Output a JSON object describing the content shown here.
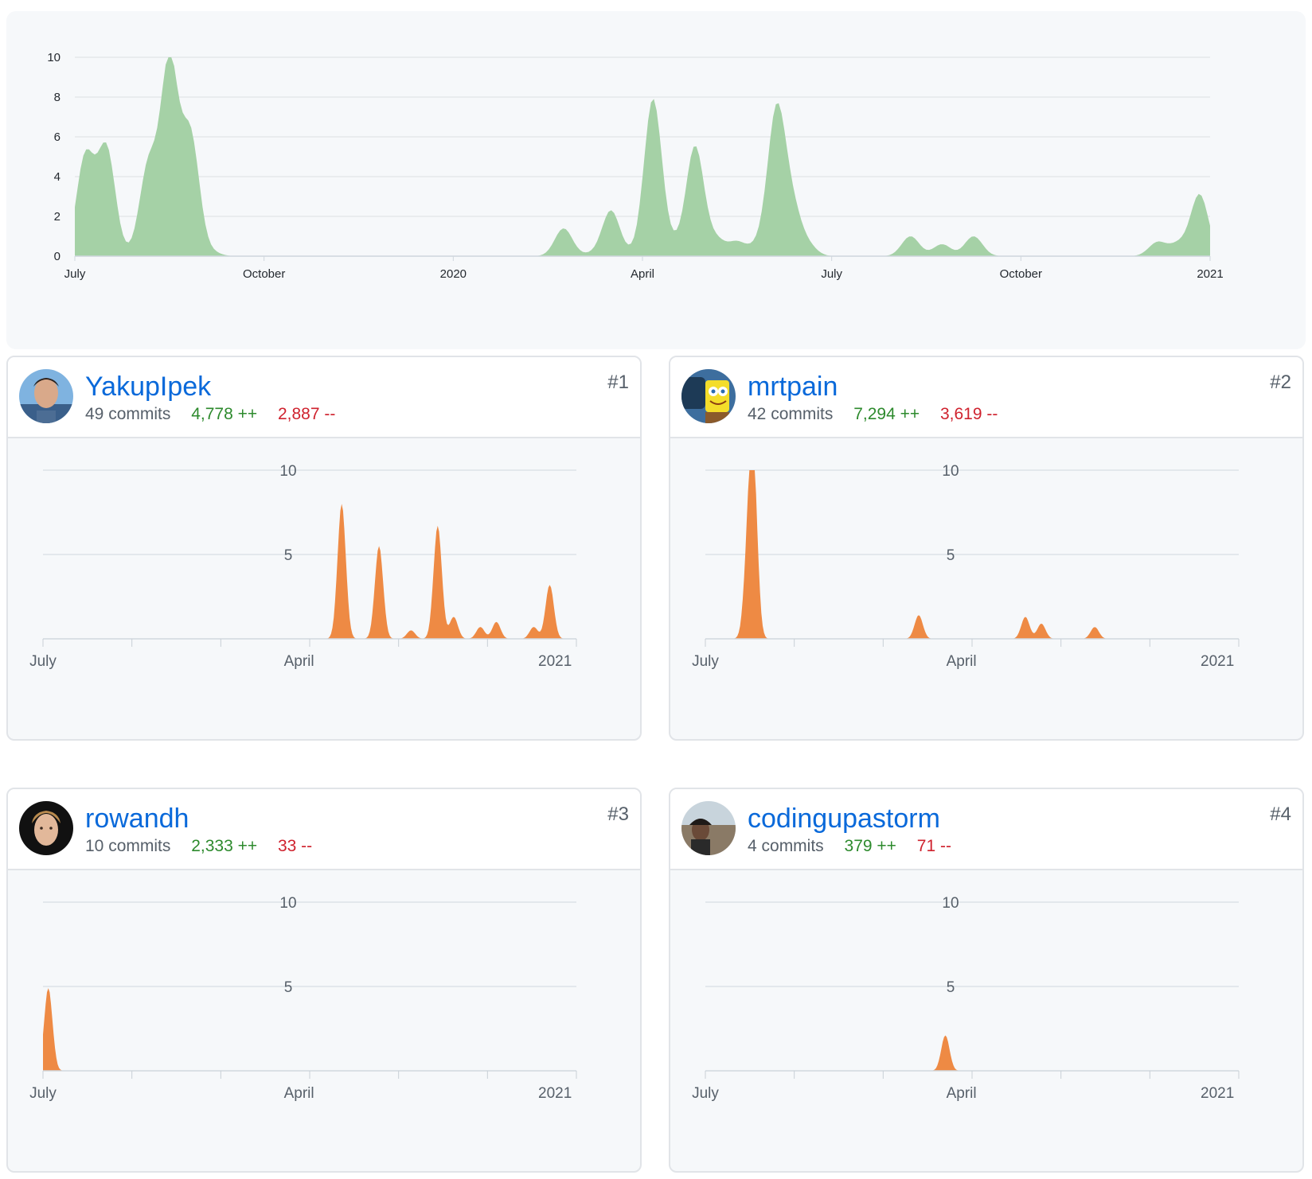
{
  "chart_data": [
    {
      "type": "area",
      "title": "",
      "x": [
        "2019-07",
        "2019-07",
        "2019-07",
        "2019-08",
        "2019-08",
        "2019-08",
        "2019-09",
        "2019-09",
        "2019-09",
        "2019-10",
        "2019-10",
        "2019-11",
        "2019-12",
        "2020-01",
        "2020-02",
        "2020-02",
        "2020-03",
        "2020-03",
        "2020-03",
        "2020-04",
        "2020-04",
        "2020-04",
        "2020-05",
        "2020-05",
        "2020-05",
        "2020-06",
        "2020-06",
        "2020-06",
        "2020-06",
        "2020-07",
        "2020-07",
        "2020-08",
        "2020-08",
        "2020-09",
        "2020-09",
        "2020-10",
        "2020-10",
        "2020-11",
        "2020-12",
        "2020-12",
        "2020-12",
        "2021-01"
      ],
      "values": [
        5.0,
        5.4,
        0.1,
        4.5,
        9.7,
        6.0,
        0.2,
        0,
        0,
        0,
        0,
        0,
        0,
        0,
        0,
        1.4,
        0.1,
        2.3,
        0.1,
        7.9,
        0.5,
        5.5,
        0.8,
        0.7,
        0.5,
        7.2,
        2.2,
        0.5,
        0,
        0,
        0,
        1.0,
        0.6,
        1.0,
        0,
        0,
        0,
        0,
        0.7,
        0.6,
        3.1,
        0
      ],
      "x_ticks": [
        "July",
        "October",
        "2020",
        "April",
        "July",
        "October",
        "2021"
      ],
      "y_ticks": [
        0,
        2,
        4,
        6,
        8,
        10
      ],
      "ylim": [
        0,
        10
      ],
      "grid": true,
      "color": "#a5d1a6"
    },
    {
      "type": "area",
      "x_ticks": [
        "July",
        "April",
        "2021"
      ],
      "y_ticks": [
        5,
        10
      ],
      "ylim": [
        0,
        10
      ],
      "values": [
        [
          0.56,
          8.0
        ],
        [
          0.63,
          5.5
        ],
        [
          0.69,
          0.5
        ],
        [
          0.74,
          6.7
        ],
        [
          0.77,
          1.3
        ],
        [
          0.82,
          0.7
        ],
        [
          0.85,
          1.0
        ],
        [
          0.92,
          0.7
        ],
        [
          0.95,
          3.2
        ]
      ],
      "color": "#ee8a44"
    },
    {
      "type": "area",
      "x_ticks": [
        "July",
        "April",
        "2021"
      ],
      "y_ticks": [
        5,
        10
      ],
      "ylim": [
        0,
        10
      ],
      "values": [
        [
          0.08,
          4.5
        ],
        [
          0.09,
          9.7
        ],
        [
          0.4,
          1.4
        ],
        [
          0.6,
          1.3
        ],
        [
          0.63,
          0.9
        ],
        [
          0.73,
          0.7
        ]
      ],
      "color": "#ee8a44"
    },
    {
      "type": "area",
      "x_ticks": [
        "July",
        "April",
        "2021"
      ],
      "y_ticks": [
        5,
        10
      ],
      "ylim": [
        0,
        10
      ],
      "values": [
        [
          0.01,
          4.9
        ]
      ],
      "color": "#ee8a44"
    },
    {
      "type": "area",
      "x_ticks": [
        "July",
        "April",
        "2021"
      ],
      "y_ticks": [
        5,
        10
      ],
      "ylim": [
        0,
        10
      ],
      "values": [
        [
          0.45,
          2.1
        ]
      ],
      "color": "#ee8a44"
    }
  ],
  "contributors": [
    {
      "login": "YakupIpek",
      "commits": "49 commits",
      "additions": "4,778 ++",
      "deletions": "2,887 --",
      "rank": "#1",
      "avatar_icon": "person-photo-icon"
    },
    {
      "login": "mrtpain",
      "commits": "42 commits",
      "additions": "7,294 ++",
      "deletions": "3,619 --",
      "rank": "#2",
      "avatar_icon": "sponge-cartoon-icon"
    },
    {
      "login": "rowandh",
      "commits": "10 commits",
      "additions": "2,333 ++",
      "deletions": "33 --",
      "rank": "#3",
      "avatar_icon": "person-photo-icon"
    },
    {
      "login": "codingupastorm",
      "commits": "4 commits",
      "additions": "379 ++",
      "deletions": "71 --",
      "rank": "#4",
      "avatar_icon": "person-photo-icon"
    }
  ]
}
